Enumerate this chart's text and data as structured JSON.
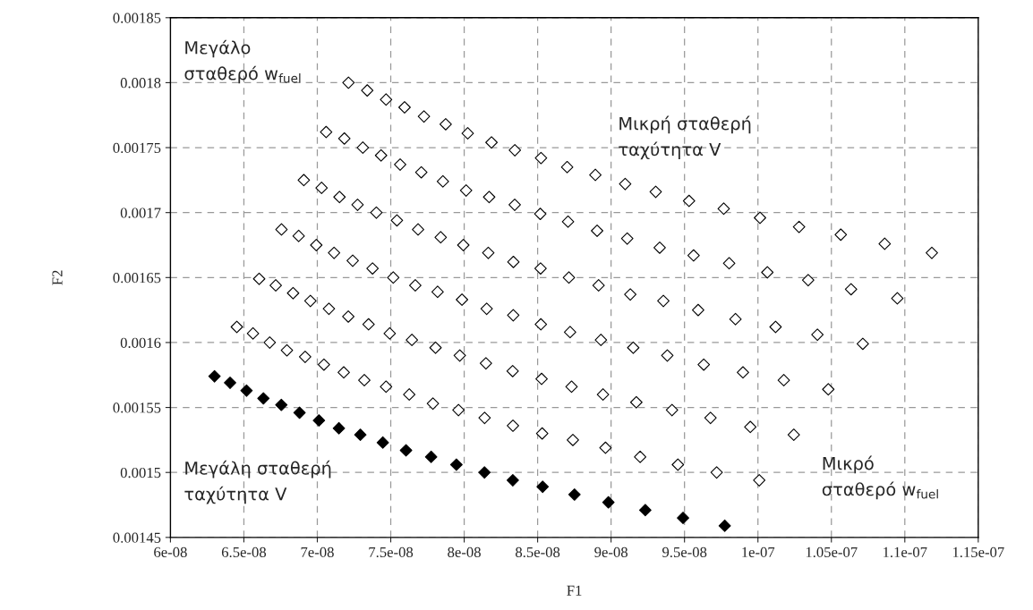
{
  "chart_data": {
    "type": "scatter",
    "xlabel": "F1",
    "ylabel": "F2",
    "xlim": [
      6e-08,
      1.15e-07
    ],
    "ylim": [
      0.00145,
      0.00185
    ],
    "xticks": [
      {
        "value": 6e-08,
        "label": "6e-08"
      },
      {
        "value": 6.5e-08,
        "label": "6.5e-08"
      },
      {
        "value": 7e-08,
        "label": "7e-08"
      },
      {
        "value": 7.5e-08,
        "label": "7.5e-08"
      },
      {
        "value": 8e-08,
        "label": "8e-08"
      },
      {
        "value": 8.5e-08,
        "label": "8.5e-08"
      },
      {
        "value": 9e-08,
        "label": "9e-08"
      },
      {
        "value": 9.5e-08,
        "label": "9.5e-08"
      },
      {
        "value": 1e-07,
        "label": "1e-07"
      },
      {
        "value": 1.05e-07,
        "label": "1.05e-07"
      },
      {
        "value": 1.1e-07,
        "label": "1.1e-07"
      },
      {
        "value": 1.15e-07,
        "label": "1.15e-07"
      }
    ],
    "yticks": [
      0.00145,
      0.0015,
      0.00155,
      0.0016,
      0.00165,
      0.0017,
      0.00175,
      0.0018,
      0.00185
    ],
    "grid": true,
    "marker": "diamond",
    "series": [
      {
        "color": "#ffffff",
        "x": [
          6.452e-08,
          6.604e-08,
          6.756e-08,
          6.908e-08,
          7.06e-08,
          7.212e-08,
          6.562e-08,
          6.717e-08,
          6.873e-08,
          7.029e-08,
          7.184e-08,
          7.34e-08,
          6.676e-08,
          6.835e-08,
          6.993e-08,
          7.151e-08,
          7.31e-08,
          7.468e-08,
          6.793e-08,
          6.953e-08,
          7.114e-08,
          7.274e-08,
          7.434e-08,
          7.594e-08,
          6.917e-08,
          7.079e-08,
          7.241e-08,
          7.402e-08,
          7.564e-08,
          7.726e-08,
          7.045e-08,
          7.211e-08,
          7.376e-08,
          7.542e-08,
          7.708e-08,
          7.874e-08,
          7.18e-08,
          7.349e-08,
          7.517e-08,
          7.686e-08,
          7.855e-08,
          8.024e-08,
          7.32e-08,
          7.493e-08,
          7.667e-08,
          7.84e-08,
          8.013e-08,
          8.186e-08,
          7.468e-08,
          7.644e-08,
          7.819e-08,
          7.994e-08,
          8.17e-08,
          8.345e-08,
          7.626e-08,
          7.805e-08,
          7.985e-08,
          8.164e-08,
          8.344e-08,
          8.523e-08,
          7.787e-08,
          7.97e-08,
          8.153e-08,
          8.335e-08,
          8.518e-08,
          8.701e-08,
          7.961e-08,
          8.148e-08,
          8.334e-08,
          8.52e-08,
          8.707e-08,
          8.893e-08,
          8.139e-08,
          8.33e-08,
          8.522e-08,
          8.713e-08,
          8.905e-08,
          9.096e-08,
          8.332e-08,
          8.527e-08,
          8.721e-08,
          8.915e-08,
          9.11e-08,
          9.304e-08,
          8.531e-08,
          8.731e-08,
          8.931e-08,
          9.131e-08,
          9.331e-08,
          9.531e-08,
          8.74e-08,
          8.945e-08,
          9.151e-08,
          9.356e-08,
          9.562e-08,
          9.767e-08,
          8.962e-08,
          9.172e-08,
          9.383e-08,
          9.593e-08,
          9.804e-08,
          1.0014e-07,
          9.198e-08,
          9.415e-08,
          9.631e-08,
          9.847e-08,
          1.0064e-07,
          1.028e-07,
          9.455e-08,
          9.677e-08,
          9.898e-08,
          1.012e-07,
          1.0342e-07,
          1.0564e-07,
          9.719e-08,
          9.948e-08,
          1.0176e-07,
          1.0405e-07,
          1.0634e-07,
          1.0863e-07,
          1.0009e-07,
          1.0244e-07,
          1.0479e-07,
          1.0714e-07,
          1.0949e-07,
          1.1184e-07
        ],
        "values": [
          0.001612,
          0.001649,
          0.001687,
          0.001725,
          0.001762,
          0.0018,
          0.001607,
          0.001644,
          0.001682,
          0.001719,
          0.001757,
          0.001794,
          0.0016,
          0.001638,
          0.001675,
          0.001712,
          0.00175,
          0.001787,
          0.001594,
          0.001632,
          0.001669,
          0.001706,
          0.001744,
          0.001781,
          0.001589,
          0.001626,
          0.001663,
          0.0017,
          0.001737,
          0.001774,
          0.001583,
          0.00162,
          0.001657,
          0.001694,
          0.001731,
          0.001768,
          0.001577,
          0.001614,
          0.00165,
          0.001687,
          0.001724,
          0.001761,
          0.001571,
          0.001607,
          0.001644,
          0.001681,
          0.001717,
          0.001754,
          0.001566,
          0.001602,
          0.001639,
          0.001675,
          0.001712,
          0.001748,
          0.00156,
          0.001596,
          0.001633,
          0.001669,
          0.001706,
          0.001742,
          0.001553,
          0.00159,
          0.001626,
          0.001662,
          0.001699,
          0.001735,
          0.001548,
          0.001584,
          0.001621,
          0.001657,
          0.001693,
          0.001729,
          0.001542,
          0.001578,
          0.001614,
          0.00165,
          0.001686,
          0.001722,
          0.001536,
          0.001572,
          0.001608,
          0.001644,
          0.00168,
          0.001716,
          0.00153,
          0.001566,
          0.001602,
          0.001637,
          0.001673,
          0.001709,
          0.001525,
          0.00156,
          0.001596,
          0.001632,
          0.001667,
          0.001703,
          0.001519,
          0.001554,
          0.00159,
          0.001625,
          0.001661,
          0.001696,
          0.001512,
          0.001548,
          0.001583,
          0.001618,
          0.001654,
          0.001689,
          0.001506,
          0.001542,
          0.001577,
          0.001612,
          0.001648,
          0.001683,
          0.0015,
          0.001535,
          0.001571,
          0.001606,
          0.001641,
          0.001676,
          0.001494,
          0.001529,
          0.001564,
          0.001599,
          0.001634,
          0.001669
        ]
      },
      {
        "color": "#000000",
        "x": [
          6.3e-08,
          6.406e-08,
          6.518e-08,
          6.633e-08,
          6.755e-08,
          6.879e-08,
          7.011e-08,
          7.147e-08,
          7.293e-08,
          7.446e-08,
          7.604e-08,
          7.775e-08,
          7.947e-08,
          8.138e-08,
          8.331e-08,
          8.534e-08,
          8.751e-08,
          8.982e-08,
          9.233e-08,
          9.49e-08,
          9.774e-08
        ],
        "values": [
          0.001574,
          0.001569,
          0.001563,
          0.001557,
          0.001552,
          0.001546,
          0.00154,
          0.001534,
          0.001529,
          0.001523,
          0.001517,
          0.001512,
          0.001506,
          0.0015,
          0.001494,
          0.001489,
          0.001483,
          0.001477,
          0.001471,
          0.001465,
          0.001459
        ]
      }
    ],
    "annotations": [
      "Μεγάλο\nσταθερό w$_{fuel}$",
      "Μικρή σταθερή\nταχύτητα V",
      "Μεγάλη σταθερή\nταχύτητα V",
      "Μικρό\nσταθερό w$_{fuel}$"
    ]
  }
}
